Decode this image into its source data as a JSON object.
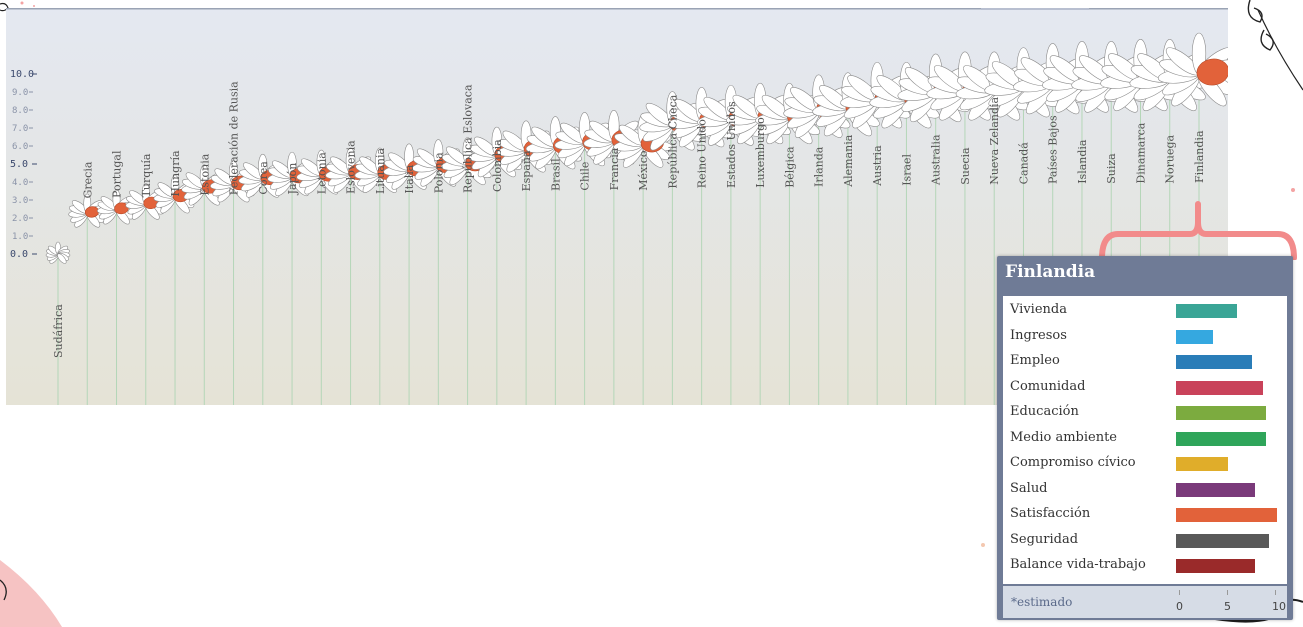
{
  "chart_data": {
    "type": "bar",
    "categories": [
      "Sudáfrica",
      "Grecia",
      "Portugal",
      "Turquía",
      "Hungría",
      "Estonia",
      "Federación de Rusia",
      "Corea",
      "Japón",
      "Letonia",
      "Eslovenia",
      "Lituania",
      "Italia",
      "Polonia",
      "República Eslovaca",
      "Colombia",
      "España",
      "Brasil",
      "Chile",
      "Francia",
      "México",
      "República Checa",
      "Reino Unido",
      "Estados Unidos",
      "Luxemburgo",
      "Bélgica",
      "Irlanda",
      "Alemania",
      "Austria",
      "Israel",
      "Australia",
      "Suecia",
      "Nueva Zelandia",
      "Canadá",
      "Países Bajos",
      "Islandia",
      "Suiza",
      "Dinamarca",
      "Noruega",
      "Finlandia"
    ],
    "values": [
      0.0,
      2.3,
      2.5,
      2.8,
      3.2,
      3.7,
      3.9,
      4.2,
      4.3,
      4.4,
      4.5,
      4.5,
      4.7,
      4.9,
      5.0,
      5.5,
      5.8,
      6.0,
      6.2,
      6.3,
      6.1,
      7.2,
      7.4,
      7.5,
      7.6,
      7.6,
      8.0,
      8.1,
      8.6,
      8.6,
      9.0,
      9.1,
      9.1,
      9.3,
      9.5,
      9.6,
      9.6,
      9.7,
      9.7,
      10.0
    ],
    "yticks": [
      "0.0",
      "1.0",
      "2.0",
      "3.0",
      "4.0",
      "5.0",
      "6.0",
      "7.0",
      "8.0",
      "9.0",
      "10.0"
    ],
    "ylim": [
      0,
      10
    ],
    "title": "",
    "xlabel": "",
    "ylabel": "",
    "grid": false,
    "colors": {
      "petal": "#ffffff",
      "petal_stroke": "#8a8a8a",
      "score_petal": "#e2623a",
      "stem": "#b4d6b8"
    },
    "tooltip": {
      "country": "Finlandia",
      "items": [
        {
          "label": "Vivienda",
          "value": 6.5,
          "color": "#3aa596"
        },
        {
          "label": "Ingresos",
          "value": 3.9,
          "color": "#35a8e0"
        },
        {
          "label": "Empleo",
          "value": 8.0,
          "color": "#2a7db8"
        },
        {
          "label": "Comunidad",
          "value": 9.2,
          "color": "#c9425a"
        },
        {
          "label": "Educación",
          "value": 9.5,
          "color": "#7cab3f"
        },
        {
          "label": "Medio ambiente",
          "value": 9.5,
          "color": "#2fa55a"
        },
        {
          "label": "Compromiso cívico",
          "value": 5.5,
          "color": "#e0ad2a"
        },
        {
          "label": "Salud",
          "value": 8.4,
          "color": "#7a3a7a"
        },
        {
          "label": "Satisfacción",
          "value": 10.7,
          "color": "#e2623a"
        },
        {
          "label": "Seguridad",
          "value": 9.9,
          "color": "#595959"
        },
        {
          "label": "Balance vida-trabajo",
          "value": 8.4,
          "color": "#9a2a2a"
        }
      ],
      "footnote": "*estimado",
      "scale_ticks": [
        "0",
        "5",
        "10"
      ]
    }
  }
}
